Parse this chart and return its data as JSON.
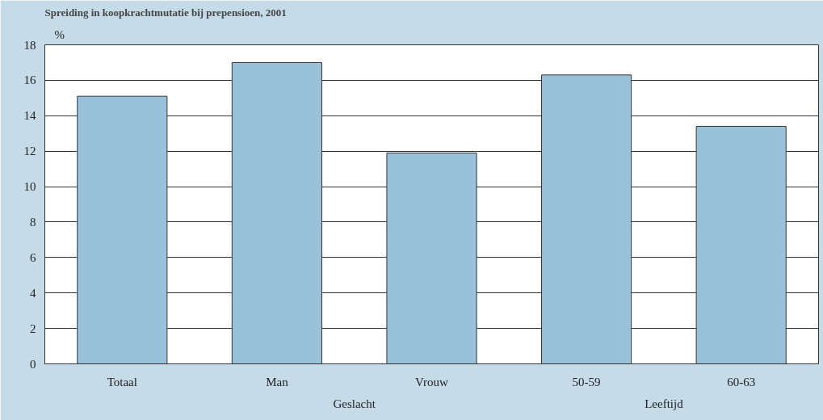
{
  "chart_data": {
    "type": "bar",
    "title": "Spreiding in koopkrachtmutatie bij prepensioen, 2001",
    "ylabel": "%",
    "categories": [
      "Totaal",
      "Man",
      "Vrouw",
      "50-59",
      "60-63"
    ],
    "values": [
      15.1,
      17.0,
      11.9,
      16.3,
      13.4
    ],
    "color": "#9ac1da",
    "annotations": [
      "Geslacht",
      "Leeftijd"
    ],
    "ylim": [
      0,
      18
    ],
    "yticks": [
      0,
      2,
      4,
      6,
      8,
      10,
      12,
      14,
      16,
      18
    ],
    "grid": "y"
  }
}
